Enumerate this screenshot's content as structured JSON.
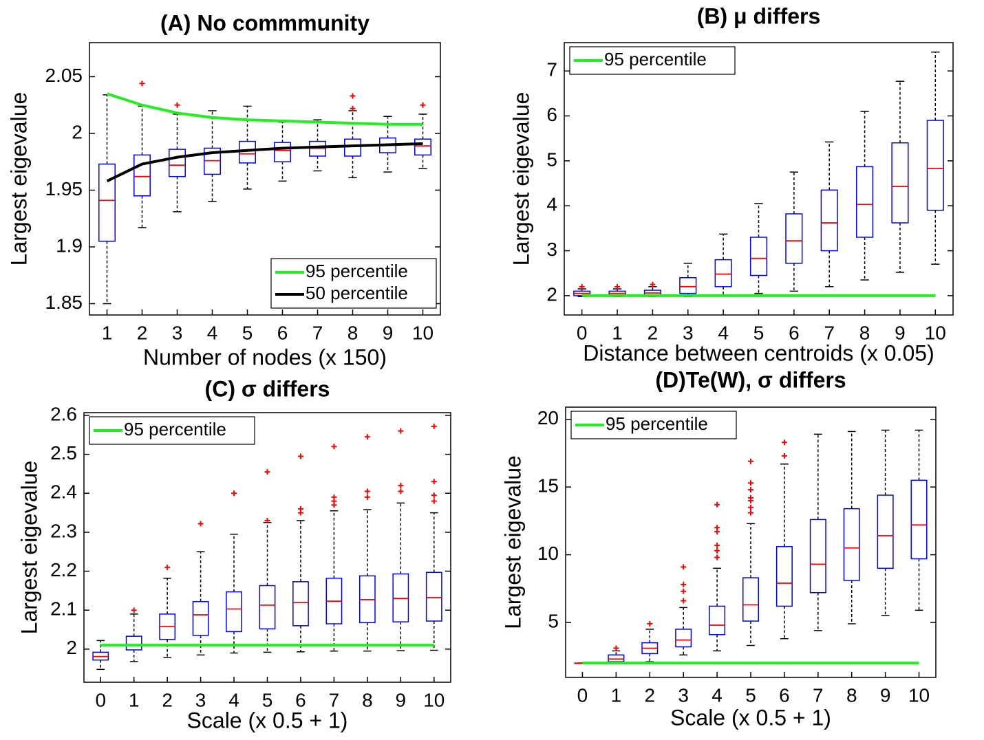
{
  "chart_data": [
    {
      "type": "box",
      "title": "(A) No commmunity",
      "xlabel": "Number of nodes (x 150)",
      "ylabel": "Largest eigevalue",
      "categories": [
        "1",
        "2",
        "3",
        "4",
        "5",
        "6",
        "7",
        "8",
        "9",
        "10"
      ],
      "boxes": [
        {
          "whislo": 1.85,
          "q1": 1.905,
          "med": 1.941,
          "q3": 1.973,
          "whishi": 2.034,
          "fliers": []
        },
        {
          "whislo": 1.917,
          "q1": 1.945,
          "med": 1.962,
          "q3": 1.981,
          "whishi": 2.024,
          "fliers": [
            2.044
          ]
        },
        {
          "whislo": 1.931,
          "q1": 1.962,
          "med": 1.972,
          "q3": 1.986,
          "whishi": 2.017,
          "fliers": [
            2.025
          ]
        },
        {
          "whislo": 1.94,
          "q1": 1.964,
          "med": 1.976,
          "q3": 1.987,
          "whishi": 2.02,
          "fliers": []
        },
        {
          "whislo": 1.951,
          "q1": 1.974,
          "med": 1.982,
          "q3": 1.993,
          "whishi": 2.024,
          "fliers": []
        },
        {
          "whislo": 1.958,
          "q1": 1.975,
          "med": 1.985,
          "q3": 1.992,
          "whishi": 2.01,
          "fliers": []
        },
        {
          "whislo": 1.967,
          "q1": 1.98,
          "med": 1.987,
          "q3": 1.993,
          "whishi": 2.012,
          "fliers": []
        },
        {
          "whislo": 1.961,
          "q1": 1.98,
          "med": 1.989,
          "q3": 1.995,
          "whishi": 2.02,
          "fliers": [
            2.022,
            2.033
          ]
        },
        {
          "whislo": 1.966,
          "q1": 1.983,
          "med": 1.99,
          "q3": 1.996,
          "whishi": 2.015,
          "fliers": []
        },
        {
          "whislo": 1.969,
          "q1": 1.981,
          "med": 1.989,
          "q3": 1.995,
          "whishi": 2.017,
          "fliers": [
            2.025
          ]
        }
      ],
      "lines": [
        {
          "name": "95 percentile",
          "color": "#22ee22",
          "values": [
            2.035,
            2.025,
            2.018,
            2.014,
            2.012,
            2.011,
            2.01,
            2.009,
            2.008,
            2.008
          ]
        },
        {
          "name": "50 percentile",
          "color": "#000000",
          "values": [
            1.958,
            1.973,
            1.979,
            1.983,
            1.985,
            1.987,
            1.988,
            1.989,
            1.99,
            1.991
          ]
        }
      ],
      "legend": "lower right",
      "ylim": [
        1.84,
        2.08
      ],
      "yticks": [
        1.85,
        1.9,
        1.95,
        2,
        2.05
      ],
      "box_color": "#0000ff",
      "median_color": "#ff0000",
      "whisker_color": "#000000",
      "flier_color": "#ff0000"
    },
    {
      "type": "box",
      "title": "(B) μ differs",
      "xlabel": "Distance between centroids (x 0.05)",
      "ylabel": "Largest eigevalue",
      "categories": [
        "0",
        "1",
        "2",
        "3",
        "4",
        "5",
        "6",
        "7",
        "8",
        "9",
        "10"
      ],
      "boxes": [
        {
          "whislo": 1.98,
          "q1": 2.0,
          "med": 2.05,
          "q3": 2.1,
          "whishi": 2.15,
          "fliers": [
            2.2
          ]
        },
        {
          "whislo": 1.98,
          "q1": 2.0,
          "med": 2.05,
          "q3": 2.1,
          "whishi": 2.15,
          "fliers": [
            2.2
          ]
        },
        {
          "whislo": 1.98,
          "q1": 2.01,
          "med": 2.06,
          "q3": 2.12,
          "whishi": 2.2,
          "fliers": [
            2.25
          ]
        },
        {
          "whislo": 1.98,
          "q1": 2.05,
          "med": 2.2,
          "q3": 2.4,
          "whishi": 2.72,
          "fliers": []
        },
        {
          "whislo": 2.0,
          "q1": 2.2,
          "med": 2.48,
          "q3": 2.8,
          "whishi": 3.37,
          "fliers": []
        },
        {
          "whislo": 2.05,
          "q1": 2.45,
          "med": 2.83,
          "q3": 3.3,
          "whishi": 4.05,
          "fliers": []
        },
        {
          "whislo": 2.1,
          "q1": 2.72,
          "med": 3.22,
          "q3": 3.82,
          "whishi": 4.75,
          "fliers": []
        },
        {
          "whislo": 2.2,
          "q1": 3.0,
          "med": 3.62,
          "q3": 4.35,
          "whishi": 5.42,
          "fliers": []
        },
        {
          "whislo": 2.35,
          "q1": 3.3,
          "med": 4.03,
          "q3": 4.87,
          "whishi": 6.1,
          "fliers": []
        },
        {
          "whislo": 2.52,
          "q1": 3.62,
          "med": 4.43,
          "q3": 5.4,
          "whishi": 6.77,
          "fliers": []
        },
        {
          "whislo": 2.7,
          "q1": 3.9,
          "med": 4.83,
          "q3": 5.9,
          "whishi": 7.42,
          "fliers": []
        }
      ],
      "lines": [
        {
          "name": "95 percentile",
          "color": "#22ee22",
          "values": [
            2,
            2,
            2,
            2,
            2,
            2,
            2,
            2,
            2,
            2,
            2
          ]
        }
      ],
      "legend": "upper left",
      "ylim": [
        1.57,
        7.63
      ],
      "yticks": [
        2,
        3,
        4,
        5,
        6,
        7
      ],
      "box_color": "#0000ff",
      "median_color": "#ff0000",
      "whisker_color": "#000000",
      "flier_color": "#ff0000"
    },
    {
      "type": "box",
      "title": "(C) σ differs",
      "xlabel": "Scale (x 0.5 + 1)",
      "ylabel": "Largest eigevalue",
      "categories": [
        "0",
        "1",
        "2",
        "3",
        "4",
        "5",
        "6",
        "7",
        "8",
        "9",
        "10"
      ],
      "boxes": [
        {
          "whislo": 1.948,
          "q1": 1.972,
          "med": 1.981,
          "q3": 1.992,
          "whishi": 2.022,
          "fliers": []
        },
        {
          "whislo": 1.968,
          "q1": 1.998,
          "med": 2.01,
          "q3": 2.033,
          "whishi": 2.09,
          "fliers": [
            2.1
          ]
        },
        {
          "whislo": 1.978,
          "q1": 2.025,
          "med": 2.058,
          "q3": 2.09,
          "whishi": 2.182,
          "fliers": [
            2.21
          ]
        },
        {
          "whislo": 1.985,
          "q1": 2.035,
          "med": 2.088,
          "q3": 2.122,
          "whishi": 2.25,
          "fliers": [
            2.322
          ]
        },
        {
          "whislo": 1.99,
          "q1": 2.045,
          "med": 2.103,
          "q3": 2.147,
          "whishi": 2.295,
          "fliers": [
            2.4
          ]
        },
        {
          "whislo": 1.992,
          "q1": 2.052,
          "med": 2.113,
          "q3": 2.163,
          "whishi": 2.325,
          "fliers": [
            2.33,
            2.455
          ]
        },
        {
          "whislo": 1.993,
          "q1": 2.06,
          "med": 2.12,
          "q3": 2.173,
          "whishi": 2.33,
          "fliers": [
            2.35,
            2.36,
            2.495
          ]
        },
        {
          "whislo": 1.995,
          "q1": 2.065,
          "med": 2.123,
          "q3": 2.182,
          "whishi": 2.355,
          "fliers": [
            2.37,
            2.38,
            2.39,
            2.52
          ]
        },
        {
          "whislo": 1.995,
          "q1": 2.068,
          "med": 2.127,
          "q3": 2.188,
          "whishi": 2.358,
          "fliers": [
            2.39,
            2.405,
            2.545
          ]
        },
        {
          "whislo": 1.996,
          "q1": 2.07,
          "med": 2.13,
          "q3": 2.193,
          "whishi": 2.375,
          "fliers": [
            2.405,
            2.42,
            2.56
          ]
        },
        {
          "whislo": 1.997,
          "q1": 2.072,
          "med": 2.132,
          "q3": 2.197,
          "whishi": 2.35,
          "fliers": [
            2.38,
            2.395,
            2.43,
            2.572
          ]
        }
      ],
      "lines": [
        {
          "name": "95 percentile",
          "color": "#22ee22",
          "values": [
            2.01,
            2.01,
            2.01,
            2.01,
            2.01,
            2.01,
            2.01,
            2.01,
            2.01,
            2.01,
            2.01
          ]
        }
      ],
      "legend": "upper left",
      "ylim": [
        1.915,
        2.607
      ],
      "yticks": [
        2,
        2.1,
        2.2,
        2.3,
        2.4,
        2.5,
        2.6
      ],
      "box_color": "#0000ff",
      "median_color": "#ff0000",
      "whisker_color": "#000000",
      "flier_color": "#ff0000"
    },
    {
      "type": "box",
      "title": "(D)Te(W), σ differs",
      "xlabel": "Scale (x 0.5 + 1)",
      "ylabel": "Largest eigevalue",
      "categories": [
        "0",
        "1",
        "2",
        "3",
        "4",
        "5",
        "6",
        "7",
        "8",
        "9",
        "10"
      ],
      "boxes": [
        {
          "whislo": 2,
          "q1": 2,
          "med": 2,
          "q3": 2,
          "whishi": 2,
          "fliers": []
        },
        {
          "whislo": 2.0,
          "q1": 2.1,
          "med": 2.3,
          "q3": 2.6,
          "whishi": 2.9,
          "fliers": [
            3.1
          ]
        },
        {
          "whislo": 2.1,
          "q1": 2.7,
          "med": 3.1,
          "q3": 3.5,
          "whishi": 4.5,
          "fliers": [
            4.9
          ]
        },
        {
          "whislo": 2.6,
          "q1": 3.2,
          "med": 3.7,
          "q3": 4.5,
          "whishi": 6.1,
          "fliers": [
            6.6,
            7.3,
            7.8,
            9.1
          ]
        },
        {
          "whislo": 2.9,
          "q1": 4.1,
          "med": 4.8,
          "q3": 6.2,
          "whishi": 9.0,
          "fliers": [
            9.8,
            10.3,
            10.7,
            11.7,
            12.0,
            13.7
          ]
        },
        {
          "whislo": 3.3,
          "q1": 5.1,
          "med": 6.3,
          "q3": 8.3,
          "whishi": 12.3,
          "fliers": [
            13.1,
            13.5,
            14.0,
            14.2,
            14.8,
            15.3,
            16.9
          ]
        },
        {
          "whislo": 3.8,
          "q1": 6.2,
          "med": 7.9,
          "q3": 10.6,
          "whishi": 16.7,
          "fliers": [
            17.3,
            18.3
          ]
        },
        {
          "whislo": 4.4,
          "q1": 7.2,
          "med": 9.3,
          "q3": 12.6,
          "whishi": 18.9,
          "fliers": []
        },
        {
          "whislo": 4.9,
          "q1": 8.1,
          "med": 10.5,
          "q3": 13.4,
          "whishi": 19.1,
          "fliers": []
        },
        {
          "whislo": 5.5,
          "q1": 9.0,
          "med": 11.4,
          "q3": 14.4,
          "whishi": 19.2,
          "fliers": []
        },
        {
          "whislo": 5.9,
          "q1": 9.7,
          "med": 12.2,
          "q3": 15.5,
          "whishi": 19.2,
          "fliers": []
        }
      ],
      "lines": [
        {
          "name": "95 percentile",
          "color": "#22ee22",
          "values": [
            2,
            2,
            2,
            2,
            2,
            2,
            2,
            2,
            2,
            2,
            2
          ]
        }
      ],
      "legend": "upper left",
      "ylim": [
        0.94,
        20.9
      ],
      "yticks": [
        5,
        10,
        15,
        20
      ],
      "box_color": "#0000ff",
      "median_color": "#ff0000",
      "whisker_color": "#000000",
      "flier_color": "#ff0000"
    }
  ]
}
